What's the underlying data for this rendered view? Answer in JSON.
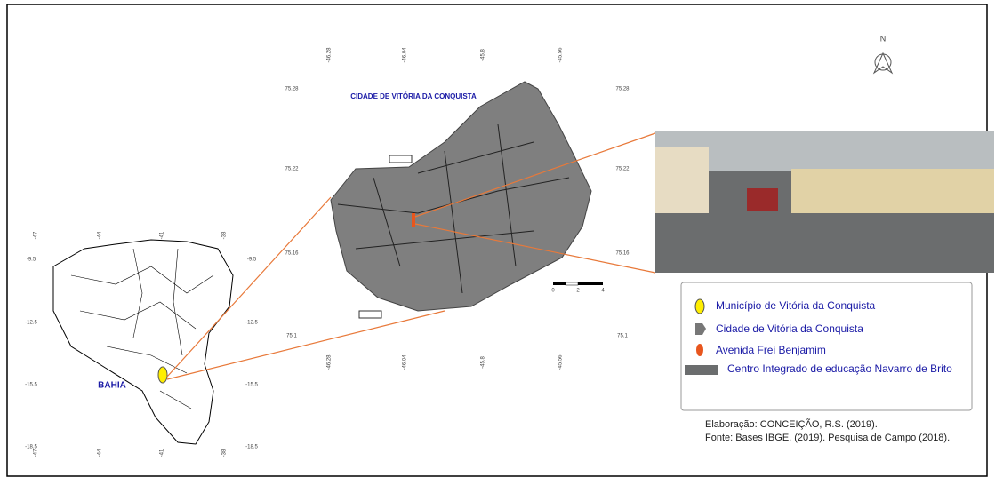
{
  "bahia_map": {
    "label": "BAHIA",
    "top_ticks": [
      "-47",
      "-44",
      "-41",
      "-38"
    ],
    "bottom_ticks": [
      "-47",
      "-44",
      "-41",
      "-38"
    ],
    "left_ticks": [
      "-9.5",
      "-12.5",
      "-15.5",
      "-18.5"
    ],
    "right_ticks": [
      "-9.5",
      "-12.5",
      "-15.5",
      "-18.5"
    ]
  },
  "city_map": {
    "title": "CIDADE DE VITÓRIA DA CONQUISTA",
    "top_ticks": [
      "-46.28",
      "-46.04",
      "-45.8",
      "-45.56"
    ],
    "bottom_ticks": [
      "-46.28",
      "-46.04",
      "-45.8",
      "-45.56"
    ],
    "left_ticks": [
      "75.28",
      "75.22",
      "75.16",
      "75.1"
    ],
    "right_ticks": [
      "75.28",
      "75.22",
      "75.16",
      "75.1"
    ]
  },
  "scale_bar": {
    "ticks": [
      "0",
      "2",
      "4"
    ]
  },
  "north_arrow": {
    "label": "N"
  },
  "legend": {
    "items": [
      "Município de Vitória da Conquista",
      "Cidade de Vitória da Conquista",
      "Avenida Frei Benjamim",
      "Centro Integrado de educação Navarro de Brito"
    ]
  },
  "credits": [
    "Elaboração: CONCEIÇÃO, R.S. (2019).",
    "Fonte: Bases IBGE, (2019). Pesquisa de Campo (2018)."
  ]
}
